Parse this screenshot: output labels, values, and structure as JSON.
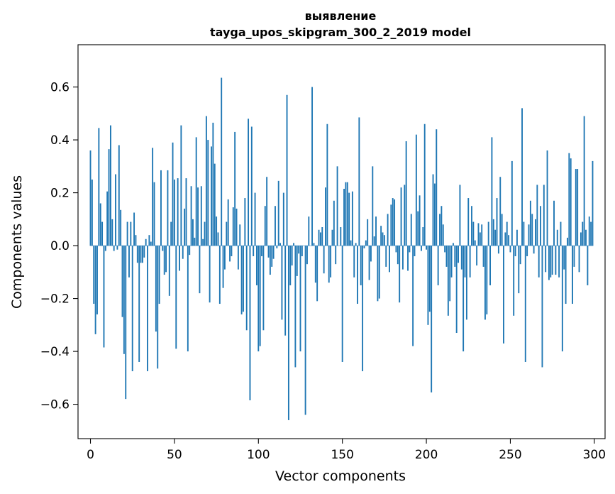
{
  "chart_data": {
    "type": "bar",
    "title_line1": "выявление",
    "title_line2": "tayga_upos_skipgram_300_2_2019 model",
    "xlabel": "Vector components",
    "ylabel": "Components values",
    "xlim": [
      -7.4,
      306.4
    ],
    "ylim": [
      -0.73,
      0.76
    ],
    "xticks": [
      0,
      50,
      100,
      150,
      200,
      250,
      300
    ],
    "yticks": [
      -0.6,
      -0.4,
      -0.2,
      0.0,
      0.2,
      0.4,
      0.6
    ],
    "ytick_labels": [
      "−0.6",
      "−0.4",
      "−0.2",
      "0.0",
      "0.2",
      "0.4",
      "0.6"
    ],
    "bar_color": "#1f77b4",
    "values": [
      0.36,
      0.25,
      -0.22,
      -0.335,
      -0.26,
      0.445,
      0.16,
      0.09,
      -0.385,
      -0.02,
      0.205,
      0.365,
      0.455,
      0.1,
      -0.02,
      0.27,
      -0.015,
      0.38,
      0.135,
      -0.27,
      -0.41,
      -0.58,
      0.09,
      -0.12,
      0.09,
      -0.475,
      0.125,
      0.04,
      -0.065,
      -0.44,
      -0.065,
      -0.065,
      -0.045,
      0.025,
      -0.475,
      0.04,
      0.015,
      0.37,
      0.24,
      -0.325,
      -0.465,
      -0.22,
      0.285,
      -0.02,
      -0.11,
      -0.1,
      0.285,
      -0.19,
      0.09,
      0.39,
      0.25,
      -0.39,
      0.255,
      -0.095,
      0.455,
      -0.05,
      0.14,
      0.255,
      -0.4,
      -0.035,
      0.225,
      0.1,
      0.03,
      0.41,
      0.22,
      -0.18,
      0.225,
      0.025,
      0.09,
      0.49,
      0.4,
      -0.215,
      0.375,
      0.465,
      0.31,
      0.11,
      0.05,
      -0.22,
      0.635,
      -0.16,
      -0.09,
      0.09,
      0.175,
      -0.06,
      -0.04,
      0.145,
      0.43,
      0.14,
      -0.09,
      0.08,
      -0.26,
      -0.25,
      0.18,
      -0.32,
      0.48,
      -0.585,
      0.45,
      -0.04,
      0.2,
      -0.15,
      -0.4,
      -0.38,
      -0.04,
      -0.32,
      0.15,
      0.26,
      -0.045,
      -0.11,
      -0.08,
      -0.05,
      0.15,
      -0.01,
      0.245,
      0.01,
      -0.28,
      0.2,
      -0.34,
      0.57,
      -0.66,
      -0.15,
      -0.075,
      0.01,
      -0.46,
      -0.115,
      -0.03,
      -0.4,
      -0.04,
      0.0,
      -0.64,
      -0.07,
      0.11,
      0.0,
      0.6,
      0.01,
      -0.14,
      -0.21,
      0.06,
      0.05,
      0.07,
      -0.105,
      0.22,
      0.46,
      -0.14,
      -0.12,
      0.06,
      0.17,
      -0.07,
      0.3,
      0.0,
      0.07,
      -0.44,
      0.215,
      0.24,
      0.24,
      0.2,
      0.02,
      0.205,
      -0.12,
      0.01,
      -0.22,
      0.485,
      -0.15,
      -0.475,
      -0.01,
      0.02,
      0.1,
      -0.13,
      -0.06,
      0.3,
      0.035,
      0.11,
      -0.21,
      -0.2,
      0.075,
      0.05,
      0.04,
      -0.08,
      0.12,
      -0.1,
      0.155,
      0.18,
      0.175,
      -0.025,
      -0.07,
      -0.215,
      0.22,
      -0.09,
      0.23,
      0.395,
      -0.095,
      -0.025,
      0.12,
      -0.38,
      -0.04,
      0.42,
      0.13,
      0.19,
      -0.02,
      0.07,
      0.46,
      -0.015,
      -0.3,
      -0.25,
      -0.555,
      0.27,
      0.235,
      0.44,
      -0.15,
      0.12,
      0.15,
      0.08,
      -0.025,
      -0.08,
      -0.265,
      -0.21,
      -0.12,
      0.01,
      -0.08,
      -0.33,
      -0.065,
      0.23,
      -0.09,
      -0.4,
      -0.12,
      -0.28,
      0.18,
      -0.12,
      0.15,
      0.09,
      0.02,
      -0.075,
      0.085,
      0.05,
      0.08,
      -0.08,
      -0.28,
      -0.26,
      0.09,
      -0.15,
      0.41,
      0.1,
      0.06,
      0.18,
      -0.03,
      0.26,
      0.12,
      -0.37,
      0.05,
      0.09,
      0.04,
      -0.025,
      0.32,
      -0.265,
      -0.04,
      0.06,
      -0.18,
      -0.07,
      0.52,
      0.09,
      -0.44,
      -0.04,
      0.08,
      0.17,
      0.12,
      -0.03,
      0.1,
      0.23,
      -0.12,
      0.15,
      -0.46,
      0.23,
      -0.1,
      0.36,
      -0.13,
      -0.12,
      -0.11,
      0.17,
      -0.11,
      0.06,
      -0.12,
      0.09,
      -0.4,
      -0.09,
      -0.22,
      0.03,
      0.35,
      0.33,
      -0.22,
      -0.08,
      0.29,
      0.29,
      -0.1,
      0.05,
      0.09,
      0.49,
      0.06,
      -0.15,
      0.11,
      0.09,
      0.32
    ]
  }
}
